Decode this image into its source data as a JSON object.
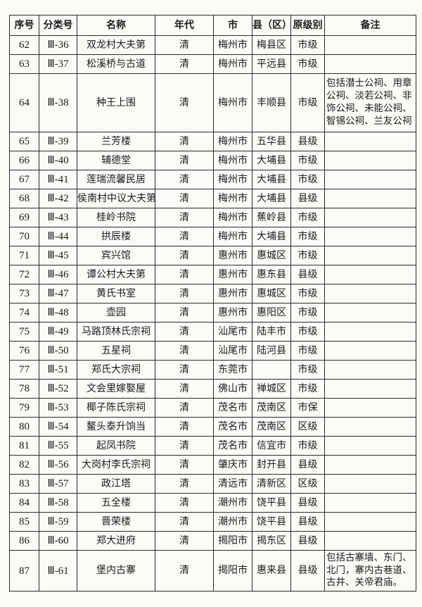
{
  "headers": [
    "序号",
    "分类号",
    "名称",
    "年代",
    "市",
    "县（区）",
    "原级别",
    "备注"
  ],
  "rows": [
    [
      "62",
      "Ⅲ-36",
      "双龙村大夫第",
      "清",
      "梅州市",
      "梅县区",
      "市级",
      ""
    ],
    [
      "63",
      "Ⅲ-37",
      "松溪桥与古道",
      "清",
      "梅州市",
      "平远县",
      "市级",
      ""
    ],
    [
      "64",
      "Ⅲ-38",
      "种王上围",
      "清",
      "梅州市",
      "丰顺县",
      "市级",
      "包括潜士公祠、用章公祠、淡若公祠、非饰公祠、未能公祠、智锡公祠、兰友公祠"
    ],
    [
      "65",
      "Ⅲ-39",
      "兰芳楼",
      "清",
      "梅州市",
      "五华县",
      "县级",
      ""
    ],
    [
      "66",
      "Ⅲ-40",
      "辅德堂",
      "清",
      "梅州市",
      "大埔县",
      "市级",
      ""
    ],
    [
      "67",
      "Ⅲ-41",
      "莲瑞流馨民居",
      "清",
      "梅州市",
      "大埔县",
      "市级",
      ""
    ],
    [
      "68",
      "Ⅲ-42",
      "侯南村中议大夫第",
      "清",
      "梅州市",
      "大埔县",
      "县级",
      ""
    ],
    [
      "69",
      "Ⅲ-43",
      "桂岭书院",
      "清",
      "梅州市",
      "蕉岭县",
      "市级",
      ""
    ],
    [
      "70",
      "Ⅲ-44",
      "拱辰楼",
      "清",
      "梅州市",
      "大埔县",
      "市级",
      ""
    ],
    [
      "71",
      "Ⅲ-45",
      "宾兴馆",
      "清",
      "惠州市",
      "惠城区",
      "市级",
      ""
    ],
    [
      "72",
      "Ⅲ-46",
      "谭公村大夫第",
      "清",
      "惠州市",
      "惠东县",
      "县级",
      ""
    ],
    [
      "73",
      "Ⅲ-47",
      "黄氏书室",
      "清",
      "惠州市",
      "惠城区",
      "市级",
      ""
    ],
    [
      "74",
      "Ⅲ-48",
      "壶园",
      "清",
      "惠州市",
      "惠阳区",
      "市级",
      ""
    ],
    [
      "75",
      "Ⅲ-49",
      "马路顶林氏宗祠",
      "清",
      "汕尾市",
      "陆丰市",
      "市级",
      ""
    ],
    [
      "76",
      "Ⅲ-50",
      "五星祠",
      "清",
      "汕尾市",
      "陆河县",
      "市级",
      ""
    ],
    [
      "77",
      "Ⅲ-51",
      "郑氏大宗祠",
      "清",
      "东莞市",
      "",
      "市级",
      ""
    ],
    [
      "78",
      "Ⅲ-52",
      "文会里嫁娶屋",
      "清",
      "佛山市",
      "禅城区",
      "市级",
      ""
    ],
    [
      "79",
      "Ⅲ-53",
      "椰子陈氏宗祠",
      "清",
      "茂名市",
      "茂南区",
      "市保",
      ""
    ],
    [
      "80",
      "Ⅲ-54",
      "鳌头泰升饷当",
      "清",
      "茂名市",
      "茂南区",
      "区级",
      ""
    ],
    [
      "81",
      "Ⅲ-55",
      "起凤书院",
      "清",
      "茂名市",
      "信宜市",
      "市级",
      ""
    ],
    [
      "82",
      "Ⅲ-56",
      "大岗村李氏宗祠",
      "清",
      "肇庆市",
      "封开县",
      "县级",
      ""
    ],
    [
      "83",
      "Ⅲ-57",
      "政江塔",
      "清",
      "清远市",
      "清新区",
      "区级",
      ""
    ],
    [
      "84",
      "Ⅲ-58",
      "五全楼",
      "清",
      "潮州市",
      "饶平县",
      "县级",
      ""
    ],
    [
      "85",
      "Ⅲ-59",
      "晋荣楼",
      "清",
      "潮州市",
      "饶平县",
      "县级",
      ""
    ],
    [
      "86",
      "Ⅲ-60",
      "郑大进府",
      "清",
      "揭阳市",
      "揭东区",
      "县级",
      ""
    ],
    [
      "87",
      "Ⅲ-61",
      "堡内古寨",
      "清",
      "揭阳市",
      "惠来县",
      "县级",
      "包括古寨墙、东门、北门，寨内古巷道、古井、关帝君庙。"
    ]
  ]
}
